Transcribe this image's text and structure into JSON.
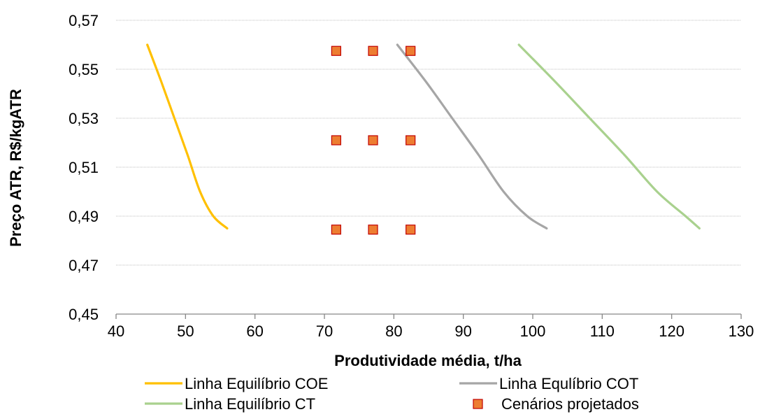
{
  "chart_data": {
    "type": "scatter",
    "xlabel": "Produtividade média,  t/ha",
    "ylabel": "Preço ATR, R$/kgATR",
    "xlim": [
      40,
      130
    ],
    "ylim": [
      0.45,
      0.57
    ],
    "x_ticks": [
      "40",
      "50",
      "60",
      "70",
      "80",
      "90",
      "100",
      "110",
      "120",
      "130"
    ],
    "y_ticks": [
      "0,45",
      "0,47",
      "0,49",
      "0,51",
      "0,53",
      "0,55",
      "0,57"
    ],
    "grid": "horizontal",
    "legend_position": "bottom",
    "series": [
      {
        "name": "Linha Equilíbrio COE",
        "kind": "line",
        "color": "#FFC000",
        "points": [
          [
            44.5,
            0.56
          ],
          [
            46.5,
            0.545
          ],
          [
            48.4,
            0.53
          ],
          [
            50.3,
            0.515
          ],
          [
            52.1,
            0.5
          ],
          [
            54.0,
            0.49
          ],
          [
            56.0,
            0.485
          ]
        ]
      },
      {
        "name": "Linha Equlíbrio COT",
        "kind": "line",
        "color": "#A6A6A6",
        "points": [
          [
            80.5,
            0.56
          ],
          [
            84.6,
            0.545
          ],
          [
            88.4,
            0.53
          ],
          [
            92.2,
            0.515
          ],
          [
            95.8,
            0.5
          ],
          [
            99.2,
            0.49
          ],
          [
            102.0,
            0.485
          ]
        ]
      },
      {
        "name": "Linha Equilíbrio CT",
        "kind": "line",
        "color": "#A9D18E",
        "points": [
          [
            98.0,
            0.56
          ],
          [
            103.2,
            0.545
          ],
          [
            108.2,
            0.53
          ],
          [
            113.2,
            0.515
          ],
          [
            117.9,
            0.5
          ],
          [
            122.0,
            0.49
          ],
          [
            124.0,
            0.485
          ]
        ]
      },
      {
        "name": "Cenários projetados",
        "kind": "scatter",
        "color": "#ED7D31",
        "edge_color": "#C00000",
        "points": [
          [
            71.7,
            0.5575
          ],
          [
            77.0,
            0.5575
          ],
          [
            82.4,
            0.5575
          ],
          [
            71.7,
            0.521
          ],
          [
            77.0,
            0.521
          ],
          [
            82.4,
            0.521
          ],
          [
            71.7,
            0.4845
          ],
          [
            77.0,
            0.4845
          ],
          [
            82.4,
            0.4845
          ]
        ]
      }
    ]
  }
}
